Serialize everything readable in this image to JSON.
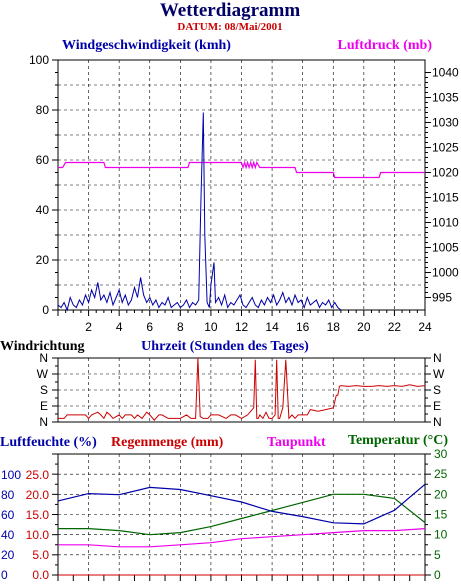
{
  "title": "Wetterdiagramm",
  "date_label": "DATUM: 08/Mai/2001",
  "colors": {
    "wind": "#0000aa",
    "pressure": "#ee00ee",
    "direction": "#cc0000",
    "humidity": "#0000aa",
    "rain": "#cc0000",
    "dew": "#ee00ee",
    "temp": "#006600",
    "axis": "#000000"
  },
  "chart_data": [
    {
      "type": "line",
      "labels": {
        "wind": "Windgeschwindigkeit (kmh)",
        "pressure": "Luftdruck (mb)"
      },
      "x_ticks": [
        "2",
        "4",
        "6",
        "8",
        "10",
        "12",
        "14",
        "16",
        "18",
        "20",
        "22",
        "24"
      ],
      "xlim": [
        0,
        24
      ],
      "y_left_ticks": [
        "0",
        "20",
        "40",
        "60",
        "80",
        "100"
      ],
      "ylim_left": [
        0,
        100
      ],
      "y_right_ticks": [
        "995",
        "1000",
        "1005",
        "1010",
        "1015",
        "1020",
        "1025",
        "1030",
        "1035",
        "1040"
      ],
      "ylim_right": [
        992.5,
        1042.5
      ],
      "series": [
        {
          "name": "Windgeschwindigkeit (kmh)",
          "axis": "left",
          "x": [
            0,
            0.2,
            0.4,
            0.6,
            0.8,
            1.0,
            1.2,
            1.4,
            1.6,
            1.8,
            2.0,
            2.2,
            2.4,
            2.6,
            2.8,
            3.0,
            3.2,
            3.4,
            3.6,
            3.8,
            4.0,
            4.2,
            4.4,
            4.6,
            4.8,
            5.0,
            5.2,
            5.4,
            5.6,
            5.8,
            6.0,
            6.2,
            6.4,
            6.6,
            6.8,
            7.0,
            7.2,
            7.4,
            7.6,
            7.8,
            8.0,
            8.2,
            8.4,
            8.6,
            8.8,
            9.0,
            9.2,
            9.35,
            9.5,
            9.6,
            9.75,
            9.9,
            10.0,
            10.2,
            10.3,
            10.5,
            10.7,
            10.9,
            11.1,
            11.3,
            11.5,
            11.7,
            11.9,
            12.1,
            12.3,
            12.5,
            12.7,
            12.9,
            13.1,
            13.3,
            13.5,
            13.7,
            13.9,
            14.1,
            14.3,
            14.5,
            14.7,
            14.9,
            15.1,
            15.3,
            15.5,
            15.7,
            15.9,
            16.1,
            16.3,
            16.5,
            16.7,
            16.9,
            17.1,
            17.3,
            17.5,
            17.7,
            17.9,
            18.1,
            18.3,
            18.5
          ],
          "values": [
            2,
            1,
            3,
            0,
            5,
            2,
            1,
            4,
            2,
            6,
            3,
            8,
            5,
            11,
            4,
            6,
            3,
            7,
            2,
            5,
            8,
            3,
            6,
            2,
            4,
            9,
            5,
            13,
            6,
            3,
            5,
            2,
            4,
            1,
            3,
            2,
            5,
            1,
            2,
            3,
            1,
            2,
            4,
            1,
            3,
            2,
            4,
            45,
            79,
            30,
            3,
            1,
            10,
            19,
            3,
            5,
            2,
            6,
            1,
            3,
            2,
            4,
            6,
            2,
            1,
            3,
            5,
            2,
            1,
            4,
            2,
            5,
            3,
            6,
            2,
            4,
            7,
            3,
            5,
            2,
            6,
            3,
            4,
            1,
            5,
            2,
            3,
            4,
            1,
            3,
            2,
            4,
            1,
            3,
            1,
            0
          ]
        },
        {
          "name": "Luftdruck (mb)",
          "axis": "right",
          "x": [
            0,
            0.3,
            0.5,
            3,
            3.1,
            5.5,
            5.6,
            8.5,
            8.6,
            9.9,
            10,
            12,
            12.1,
            12.2,
            12.3,
            12.4,
            12.5,
            12.6,
            12.7,
            12.8,
            12.9,
            13,
            13.2,
            13.3,
            15.5,
            15.6,
            18,
            18.1,
            21,
            21.1,
            24
          ],
          "values": [
            1021,
            1021,
            1022,
            1022,
            1021,
            1021,
            1021,
            1021,
            1022,
            1022,
            1022,
            1022,
            1021,
            1022,
            1021,
            1022,
            1021,
            1022,
            1021,
            1022,
            1021,
            1022,
            1021,
            1021,
            1021,
            1020,
            1020,
            1019,
            1019,
            1020,
            1020
          ]
        }
      ]
    },
    {
      "type": "line",
      "labels": {
        "direction": "Windrichtung",
        "x": "Uhrzeit (Stunden des Tages)"
      },
      "y_ticks": [
        "N",
        "W",
        "S",
        "E",
        "N"
      ],
      "ylim": [
        0,
        360
      ],
      "series": [
        {
          "name": "Windrichtung",
          "x": [
            0,
            0.4,
            0.6,
            1.8,
            2.0,
            2.2,
            2.6,
            2.8,
            3.0,
            3.2,
            3.4,
            3.6,
            4.0,
            4.2,
            4.4,
            4.8,
            5.0,
            5.2,
            5.5,
            5.8,
            6.0,
            6.3,
            6.6,
            6.8,
            7.2,
            7.6,
            8.0,
            8.4,
            8.7,
            9.0,
            9.15,
            9.3,
            9.5,
            9.8,
            10.0,
            10.5,
            11.0,
            11.3,
            11.6,
            12.0,
            12.4,
            12.8,
            12.9,
            13.0,
            13.1,
            13.2,
            13.4,
            13.6,
            13.8,
            14.0,
            14.2,
            14.3,
            14.4,
            14.5,
            14.7,
            14.9,
            15.1,
            15.3,
            15.5,
            15.7,
            16.0,
            16.3,
            16.5,
            17.0,
            17.5,
            18.0,
            18.2,
            18.3,
            18.4,
            18.5,
            19.0,
            19.5,
            20.0,
            20.5,
            21.0,
            21.5,
            22.0,
            22.5,
            23.0,
            23.5,
            24
          ],
          "values": [
            20,
            20,
            40,
            40,
            20,
            40,
            55,
            40,
            20,
            55,
            40,
            20,
            40,
            20,
            40,
            40,
            20,
            40,
            20,
            55,
            40,
            10,
            40,
            40,
            20,
            20,
            20,
            40,
            20,
            20,
            360,
            30,
            20,
            20,
            40,
            40,
            20,
            40,
            40,
            20,
            40,
            80,
            350,
            20,
            20,
            40,
            20,
            55,
            20,
            20,
            40,
            350,
            20,
            20,
            80,
            350,
            20,
            40,
            20,
            40,
            40,
            40,
            70,
            60,
            70,
            80,
            150,
            150,
            200,
            205,
            200,
            205,
            200,
            200,
            205,
            200,
            205,
            200,
            210,
            200,
            205
          ]
        }
      ]
    },
    {
      "type": "line",
      "labels": {
        "humidity": "Luftfeuchte (%)",
        "rain": "Regenmenge (mm)",
        "dew": "Taupunkt",
        "temp": "Temperatur (°C)"
      },
      "y_left1_ticks": [
        "100",
        "80",
        "60",
        "40",
        "20",
        "0"
      ],
      "y_left2_ticks": [
        "25.0",
        "20.0",
        "15.0",
        "10.0",
        "5.0",
        "0.0"
      ],
      "y_right_ticks": [
        "30",
        "25",
        "20",
        "15",
        "10",
        "5",
        "0"
      ],
      "ylim_humidity": [
        0,
        116
      ],
      "ylim_temp": [
        0,
        30
      ],
      "series": [
        {
          "name": "Luftfeuchte (%)",
          "axis": "left",
          "x": [
            0,
            2,
            4,
            6,
            8,
            10,
            12,
            14,
            16,
            18,
            20,
            22,
            24
          ],
          "values": [
            71,
            78,
            77,
            84,
            82,
            76,
            70,
            61,
            56,
            50,
            49,
            62,
            87
          ]
        },
        {
          "name": "Temperatur (°C)",
          "axis": "right",
          "x": [
            0,
            2,
            4,
            6,
            8,
            10,
            12,
            14,
            16,
            18,
            20,
            22,
            24
          ],
          "values": [
            11.5,
            11.5,
            11,
            10,
            10.5,
            12,
            14,
            16,
            18,
            20,
            20,
            19,
            13
          ]
        },
        {
          "name": "Taupunkt",
          "axis": "right",
          "x": [
            0,
            2,
            4,
            6,
            8,
            10,
            12,
            14,
            16,
            18,
            20,
            22,
            24
          ],
          "values": [
            7.5,
            7.5,
            7,
            7,
            7.5,
            8,
            9,
            9.5,
            10,
            10.5,
            11,
            11,
            11.5
          ]
        },
        {
          "name": "Regenmenge (mm)",
          "axis": "right",
          "x": [
            0,
            24
          ],
          "values": [
            0,
            0
          ]
        }
      ]
    }
  ]
}
